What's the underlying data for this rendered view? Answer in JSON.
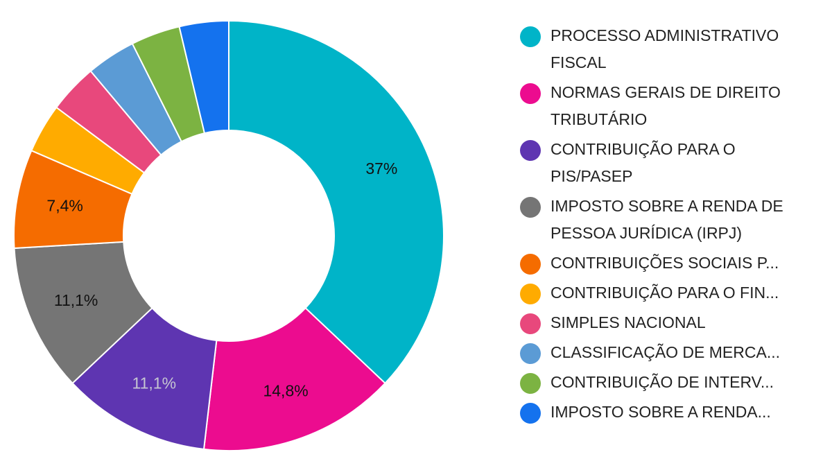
{
  "chart_data": {
    "type": "pie",
    "donut": true,
    "title": "",
    "legend_position": "right",
    "slices": [
      {
        "label": "PROCESSO ADMINISTRATIVO FISCAL",
        "value": 37,
        "display": "37%",
        "color": "#00b4c8",
        "label_color": "#111111"
      },
      {
        "label": "NORMAS GERAIS DE DIREITO TRIBUTÁRIO",
        "value": 14.8,
        "display": "14,8%",
        "color": "#ec0c8f",
        "label_color": "#111111"
      },
      {
        "label": "CONTRIBUIÇÃO PARA O PIS/PASEP",
        "value": 11.1,
        "display": "11,1%",
        "color": "#5e35b1",
        "label_color": "#c6c6d2"
      },
      {
        "label": "IMPOSTO SOBRE A RENDA DE PESSOA JURÍDICA (IRPJ)",
        "value": 11.1,
        "display": "11,1%",
        "color": "#757575",
        "label_color": "#111111"
      },
      {
        "label": "CONTRIBUIÇÕES SOCIAIS P...",
        "value": 7.4,
        "display": "7,4%",
        "color": "#f56c00",
        "label_color": "#111111"
      },
      {
        "label": "CONTRIBUIÇÃO PARA O FIN...",
        "value": 3.7,
        "display": "",
        "color": "#ffab00",
        "label_color": "#111111"
      },
      {
        "label": "SIMPLES NACIONAL",
        "value": 3.7,
        "display": "",
        "color": "#e8487c",
        "label_color": "#111111"
      },
      {
        "label": "CLASSIFICAÇÃO DE MERCA...",
        "value": 3.7,
        "display": "",
        "color": "#5b9bd5",
        "label_color": "#111111"
      },
      {
        "label": "CONTRIBUIÇÃO DE INTERV...",
        "value": 3.7,
        "display": "",
        "color": "#7cb342",
        "label_color": "#111111"
      },
      {
        "label": "IMPOSTO SOBRE A RENDA...",
        "value": 3.7,
        "display": "",
        "color": "#1472ee",
        "label_color": "#111111"
      }
    ]
  }
}
